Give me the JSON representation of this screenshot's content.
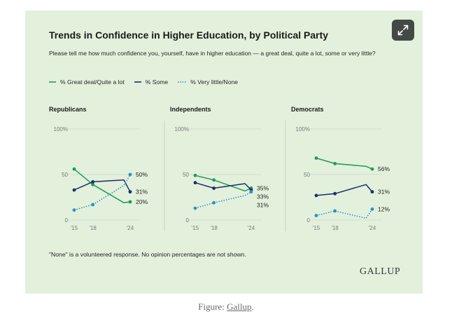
{
  "figure": {
    "caption_prefix": "Figure: ",
    "caption_link": "Gallup",
    "caption_suffix": ".",
    "brand": "GALLUP",
    "expand_icon": "expand-arrows-icon"
  },
  "colors": {
    "card_bg": "#e2f0dc",
    "great_deal": "#1f9b5c",
    "some": "#1c2e69",
    "very_little": "#2a92c4",
    "grid": "#cfd9cb",
    "divider": "#c6d3c2"
  },
  "chart_data": {
    "type": "line",
    "title": "Trends in Confidence in Higher Education, by Political Party",
    "subtitle": "Please tell me how much confidence you, yourself, have in higher education — a great deal, quite a lot, some or very little?",
    "note": "\"None\" is a volunteered response. No opinion percentages are not shown.",
    "legend": [
      {
        "key": "great_deal",
        "label": "% Great deal/Quite a lot",
        "style": "solid"
      },
      {
        "key": "some",
        "label": "% Some",
        "style": "solid"
      },
      {
        "key": "very_little",
        "label": "% Very little/None",
        "style": "dotted"
      }
    ],
    "x": [
      2015,
      2018,
      2023,
      2024
    ],
    "x_tick_labels": [
      "'15",
      "'18",
      "'24"
    ],
    "y_tick_labels": [
      "0",
      "50",
      "100%"
    ],
    "ylim": [
      0,
      100
    ],
    "panels": [
      {
        "title": "Republicans",
        "series": {
          "great_deal": [
            56,
            39,
            19,
            20
          ],
          "some": [
            33,
            42,
            44,
            31
          ],
          "very_little": [
            11,
            17,
            38,
            50
          ]
        },
        "end_labels": {
          "very_little": "50%",
          "some": "31%",
          "great_deal": "20%"
        }
      },
      {
        "title": "Independents",
        "series": {
          "great_deal": [
            49,
            44,
            32,
            35
          ],
          "some": [
            41,
            35,
            40,
            33
          ],
          "very_little": [
            13,
            19,
            27,
            31
          ]
        },
        "end_labels": {
          "great_deal": "35%",
          "some": "33%",
          "very_little": "31%"
        }
      },
      {
        "title": "Democrats",
        "series": {
          "great_deal": [
            68,
            62,
            59,
            56
          ],
          "some": [
            27,
            29,
            39,
            31
          ],
          "very_little": [
            5,
            10,
            2,
            12
          ]
        },
        "end_labels": {
          "great_deal": "56%",
          "some": "31%",
          "very_little": "12%"
        }
      }
    ]
  }
}
